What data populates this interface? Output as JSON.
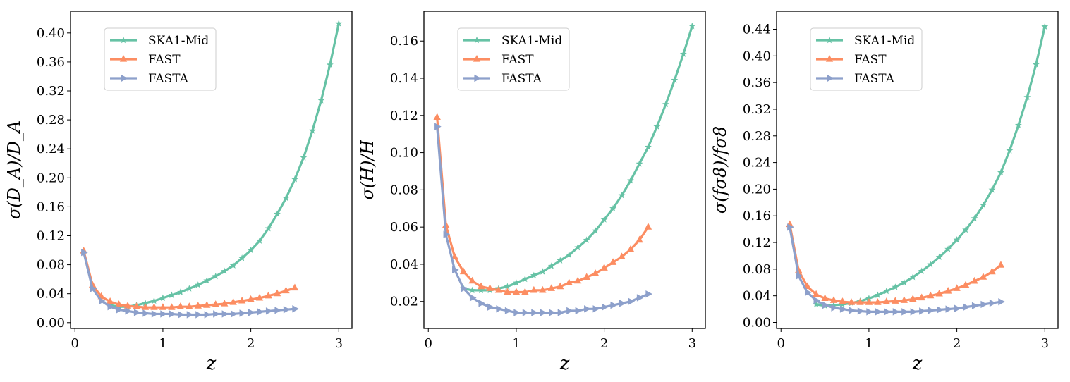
{
  "chart_data": [
    {
      "type": "line",
      "ylabel": "σ(D_A)/D_A",
      "xlabel": "z",
      "xlim": [
        -0.05,
        3.15
      ],
      "ylim": [
        -0.008,
        0.43
      ],
      "xticks": [
        0,
        1,
        2,
        3
      ],
      "yticks": [
        0.0,
        0.04,
        0.08,
        0.12,
        0.16,
        0.2,
        0.24,
        0.28,
        0.32,
        0.36,
        0.4
      ],
      "ytick_labels": [
        "0.00",
        "0.04",
        "0.08",
        "0.12",
        "0.16",
        "0.20",
        "0.24",
        "0.28",
        "0.32",
        "0.36",
        "0.40"
      ],
      "legend_position": "top-left",
      "series": [
        {
          "name": "SKA1-Mid",
          "color": "#66c2a5",
          "marker": "star",
          "x": [
            0.4,
            0.5,
            0.6,
            0.7,
            0.8,
            0.9,
            1.0,
            1.1,
            1.2,
            1.3,
            1.4,
            1.5,
            1.6,
            1.7,
            1.8,
            1.9,
            2.0,
            2.1,
            2.2,
            2.3,
            2.4,
            2.5,
            2.6,
            2.7,
            2.8,
            2.9,
            3.0
          ],
          "values": [
            0.024,
            0.022,
            0.022,
            0.024,
            0.027,
            0.03,
            0.034,
            0.038,
            0.042,
            0.047,
            0.052,
            0.058,
            0.064,
            0.071,
            0.079,
            0.089,
            0.1,
            0.113,
            0.13,
            0.15,
            0.172,
            0.198,
            0.228,
            0.265,
            0.307,
            0.356,
            0.413
          ]
        },
        {
          "name": "FAST",
          "color": "#fc8d62",
          "marker": "triangle-up",
          "x": [
            0.1,
            0.2,
            0.3,
            0.4,
            0.5,
            0.6,
            0.7,
            0.8,
            0.9,
            1.0,
            1.1,
            1.2,
            1.3,
            1.4,
            1.5,
            1.6,
            1.7,
            1.8,
            1.9,
            2.0,
            2.1,
            2.2,
            2.3,
            2.4,
            2.5
          ],
          "values": [
            0.099,
            0.052,
            0.036,
            0.029,
            0.025,
            0.023,
            0.022,
            0.021,
            0.021,
            0.021,
            0.021,
            0.022,
            0.022,
            0.023,
            0.024,
            0.025,
            0.026,
            0.028,
            0.03,
            0.032,
            0.034,
            0.037,
            0.04,
            0.044,
            0.048
          ]
        },
        {
          "name": "FASTA",
          "color": "#8da0cb",
          "marker": "triangle-right",
          "x": [
            0.1,
            0.2,
            0.3,
            0.4,
            0.5,
            0.6,
            0.7,
            0.8,
            0.9,
            1.0,
            1.1,
            1.2,
            1.3,
            1.4,
            1.5,
            1.6,
            1.7,
            1.8,
            1.9,
            2.0,
            2.1,
            2.2,
            2.3,
            2.4,
            2.5
          ],
          "values": [
            0.097,
            0.047,
            0.03,
            0.022,
            0.018,
            0.016,
            0.014,
            0.013,
            0.012,
            0.012,
            0.012,
            0.011,
            0.011,
            0.011,
            0.011,
            0.012,
            0.012,
            0.012,
            0.013,
            0.014,
            0.015,
            0.016,
            0.017,
            0.018,
            0.019
          ]
        }
      ]
    },
    {
      "type": "line",
      "ylabel": "σ(H)/H",
      "xlabel": "z",
      "xlim": [
        -0.05,
        3.15
      ],
      "ylim": [
        0.0055,
        0.176
      ],
      "xticks": [
        0,
        1,
        2,
        3
      ],
      "yticks": [
        0.02,
        0.04,
        0.06,
        0.08,
        0.1,
        0.12,
        0.14,
        0.16
      ],
      "ytick_labels": [
        "0.02",
        "0.04",
        "0.06",
        "0.08",
        "0.10",
        "0.12",
        "0.14",
        "0.16"
      ],
      "legend_position": "top-left",
      "series": [
        {
          "name": "SKA1-Mid",
          "color": "#66c2a5",
          "marker": "star",
          "x": [
            0.4,
            0.5,
            0.6,
            0.7,
            0.8,
            0.9,
            1.0,
            1.1,
            1.2,
            1.3,
            1.4,
            1.5,
            1.6,
            1.7,
            1.8,
            1.9,
            2.0,
            2.1,
            2.2,
            2.3,
            2.4,
            2.5,
            2.6,
            2.7,
            2.8,
            2.9,
            3.0
          ],
          "values": [
            0.027,
            0.026,
            0.026,
            0.026,
            0.027,
            0.028,
            0.03,
            0.032,
            0.034,
            0.036,
            0.039,
            0.042,
            0.045,
            0.049,
            0.053,
            0.058,
            0.064,
            0.07,
            0.077,
            0.085,
            0.094,
            0.103,
            0.114,
            0.126,
            0.139,
            0.153,
            0.168
          ]
        },
        {
          "name": "FAST",
          "color": "#fc8d62",
          "marker": "triangle-up",
          "x": [
            0.1,
            0.2,
            0.3,
            0.4,
            0.5,
            0.6,
            0.7,
            0.8,
            0.9,
            1.0,
            1.1,
            1.2,
            1.3,
            1.4,
            1.5,
            1.6,
            1.7,
            1.8,
            1.9,
            2.0,
            2.1,
            2.2,
            2.3,
            2.4,
            2.5
          ],
          "values": [
            0.119,
            0.061,
            0.044,
            0.036,
            0.031,
            0.028,
            0.027,
            0.026,
            0.025,
            0.025,
            0.025,
            0.026,
            0.026,
            0.027,
            0.028,
            0.03,
            0.031,
            0.033,
            0.035,
            0.038,
            0.041,
            0.044,
            0.048,
            0.053,
            0.06
          ]
        },
        {
          "name": "FASTA",
          "color": "#8da0cb",
          "marker": "triangle-right",
          "x": [
            0.1,
            0.2,
            0.3,
            0.4,
            0.5,
            0.6,
            0.7,
            0.8,
            0.9,
            1.0,
            1.1,
            1.2,
            1.3,
            1.4,
            1.5,
            1.6,
            1.7,
            1.8,
            1.9,
            2.0,
            2.1,
            2.2,
            2.3,
            2.4,
            2.5
          ],
          "values": [
            0.114,
            0.056,
            0.037,
            0.027,
            0.022,
            0.019,
            0.017,
            0.016,
            0.015,
            0.014,
            0.014,
            0.014,
            0.014,
            0.014,
            0.014,
            0.015,
            0.015,
            0.016,
            0.016,
            0.017,
            0.018,
            0.019,
            0.02,
            0.022,
            0.024
          ]
        }
      ]
    },
    {
      "type": "line",
      "ylabel": "σ(fσ8)/fσ8",
      "xlabel": "z",
      "xlim": [
        -0.05,
        3.15
      ],
      "ylim": [
        -0.009,
        0.467
      ],
      "xticks": [
        0,
        1,
        2,
        3
      ],
      "yticks": [
        0.0,
        0.04,
        0.08,
        0.12,
        0.16,
        0.2,
        0.24,
        0.28,
        0.32,
        0.36,
        0.4,
        0.44
      ],
      "ytick_labels": [
        "0.00",
        "0.04",
        "0.08",
        "0.12",
        "0.16",
        "0.20",
        "0.24",
        "0.28",
        "0.32",
        "0.36",
        "0.40",
        "0.44"
      ],
      "legend_position": "top-left",
      "series": [
        {
          "name": "SKA1-Mid",
          "color": "#66c2a5",
          "marker": "star",
          "x": [
            0.4,
            0.5,
            0.6,
            0.7,
            0.8,
            0.9,
            1.0,
            1.1,
            1.2,
            1.3,
            1.4,
            1.5,
            1.6,
            1.7,
            1.8,
            1.9,
            2.0,
            2.1,
            2.2,
            2.3,
            2.4,
            2.5,
            2.6,
            2.7,
            2.8,
            2.9,
            3.0
          ],
          "values": [
            0.027,
            0.025,
            0.026,
            0.027,
            0.029,
            0.032,
            0.036,
            0.041,
            0.047,
            0.053,
            0.06,
            0.068,
            0.077,
            0.087,
            0.098,
            0.11,
            0.124,
            0.139,
            0.156,
            0.176,
            0.199,
            0.225,
            0.258,
            0.296,
            0.338,
            0.387,
            0.444
          ]
        },
        {
          "name": "FAST",
          "color": "#fc8d62",
          "marker": "triangle-up",
          "x": [
            0.1,
            0.2,
            0.3,
            0.4,
            0.5,
            0.6,
            0.7,
            0.8,
            0.9,
            1.0,
            1.1,
            1.2,
            1.3,
            1.4,
            1.5,
            1.6,
            1.7,
            1.8,
            1.9,
            2.0,
            2.1,
            2.2,
            2.3,
            2.4,
            2.5
          ],
          "values": [
            0.147,
            0.078,
            0.054,
            0.042,
            0.036,
            0.033,
            0.031,
            0.03,
            0.03,
            0.03,
            0.03,
            0.031,
            0.032,
            0.033,
            0.035,
            0.037,
            0.04,
            0.043,
            0.047,
            0.051,
            0.056,
            0.062,
            0.068,
            0.076,
            0.086
          ]
        },
        {
          "name": "FASTA",
          "color": "#8da0cb",
          "marker": "triangle-right",
          "x": [
            0.1,
            0.2,
            0.3,
            0.4,
            0.5,
            0.6,
            0.7,
            0.8,
            0.9,
            1.0,
            1.1,
            1.2,
            1.3,
            1.4,
            1.5,
            1.6,
            1.7,
            1.8,
            1.9,
            2.0,
            2.1,
            2.2,
            2.3,
            2.4,
            2.5
          ],
          "values": [
            0.143,
            0.07,
            0.045,
            0.033,
            0.026,
            0.022,
            0.02,
            0.018,
            0.017,
            0.016,
            0.016,
            0.016,
            0.016,
            0.016,
            0.016,
            0.017,
            0.018,
            0.019,
            0.02,
            0.021,
            0.023,
            0.025,
            0.027,
            0.029,
            0.031
          ]
        }
      ]
    }
  ]
}
